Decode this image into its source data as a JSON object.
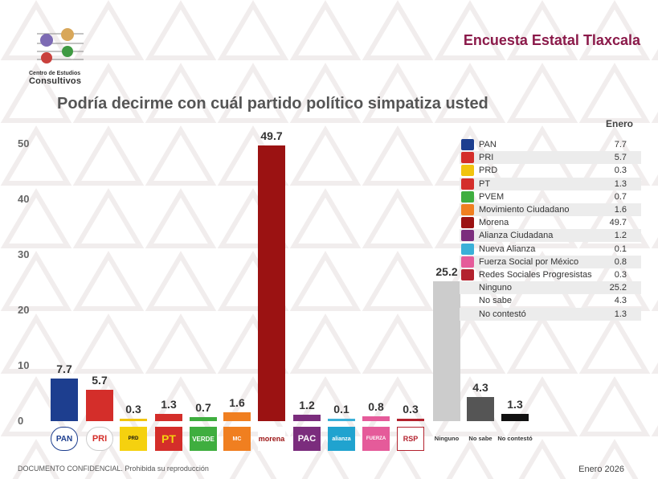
{
  "header": {
    "title": "Encuesta Estatal Tlaxcala",
    "logo_line1": "Centro de Estudios",
    "logo_line2": "Consultivos"
  },
  "chart_data": {
    "type": "bar",
    "title": "Podría decirme con cuál partido político simpatiza usted",
    "categories": [
      "PAN",
      "PRI",
      "PRD",
      "PT",
      "PVEM",
      "Movimiento Ciudadano",
      "Morena",
      "Alianza Ciudadana",
      "Nueva Alianza",
      "Fuerza Social por México",
      "Redes Sociales Progresistas",
      "Ninguno",
      "No sabe",
      "No contestó"
    ],
    "values": [
      7.7,
      5.7,
      0.3,
      1.3,
      0.7,
      1.6,
      49.7,
      1.2,
      0.1,
      0.8,
      0.3,
      25.2,
      4.3,
      1.3
    ],
    "value_labels": [
      "7.7",
      "5.7",
      "0.3",
      "1.3",
      "0.7",
      "1.6",
      "49.7",
      "1.2",
      "0.1",
      "0.8",
      "0.3",
      "25.2",
      "4.3",
      "1.3"
    ],
    "colors": [
      "#1d3e8f",
      "#d42e2a",
      "#f1c40f",
      "#d42e2a",
      "#3fae3f",
      "#f07f20",
      "#9b1212",
      "#7b2d7d",
      "#3ab0d8",
      "#e55b9a",
      "#b3222e",
      "#cccccc",
      "#555555",
      "#111111"
    ],
    "ylim": [
      0,
      50
    ],
    "yticks": [
      "0",
      "10",
      "20",
      "30",
      "40",
      "50"
    ],
    "icon_labels": [
      "PAN",
      "PRI",
      "PRD",
      "PT",
      "VERDE",
      "MC",
      "morena",
      "PAC",
      "alianza",
      "FUERZA",
      "RSP"
    ],
    "text_categories": [
      "Ninguno",
      "No sabe",
      "No contestó"
    ],
    "legend_title": "Enero",
    "legend": [
      {
        "name": "PAN",
        "value": "7.7"
      },
      {
        "name": "PRI",
        "value": "5.7"
      },
      {
        "name": "PRD",
        "value": "0.3"
      },
      {
        "name": "PT",
        "value": "1.3"
      },
      {
        "name": "PVEM",
        "value": "0.7"
      },
      {
        "name": "Movimiento Ciudadano",
        "value": "1.6"
      },
      {
        "name": "Morena",
        "value": "49.7"
      },
      {
        "name": "Alianza Ciudadana",
        "value": "1.2"
      },
      {
        "name": "Nueva Alianza",
        "value": "0.1"
      },
      {
        "name": "Fuerza Social por México",
        "value": "0.8"
      },
      {
        "name": "Redes Sociales Progresistas",
        "value": "0.3"
      },
      {
        "name": "Ninguno",
        "value": "25.2"
      },
      {
        "name": "No sabe",
        "value": "4.3"
      },
      {
        "name": "No contestó",
        "value": "1.3"
      }
    ]
  },
  "footer": {
    "left": "DOCUMENTO CONFIDENCIAL. Prohibida su reproducción",
    "right": "Enero 2026"
  }
}
